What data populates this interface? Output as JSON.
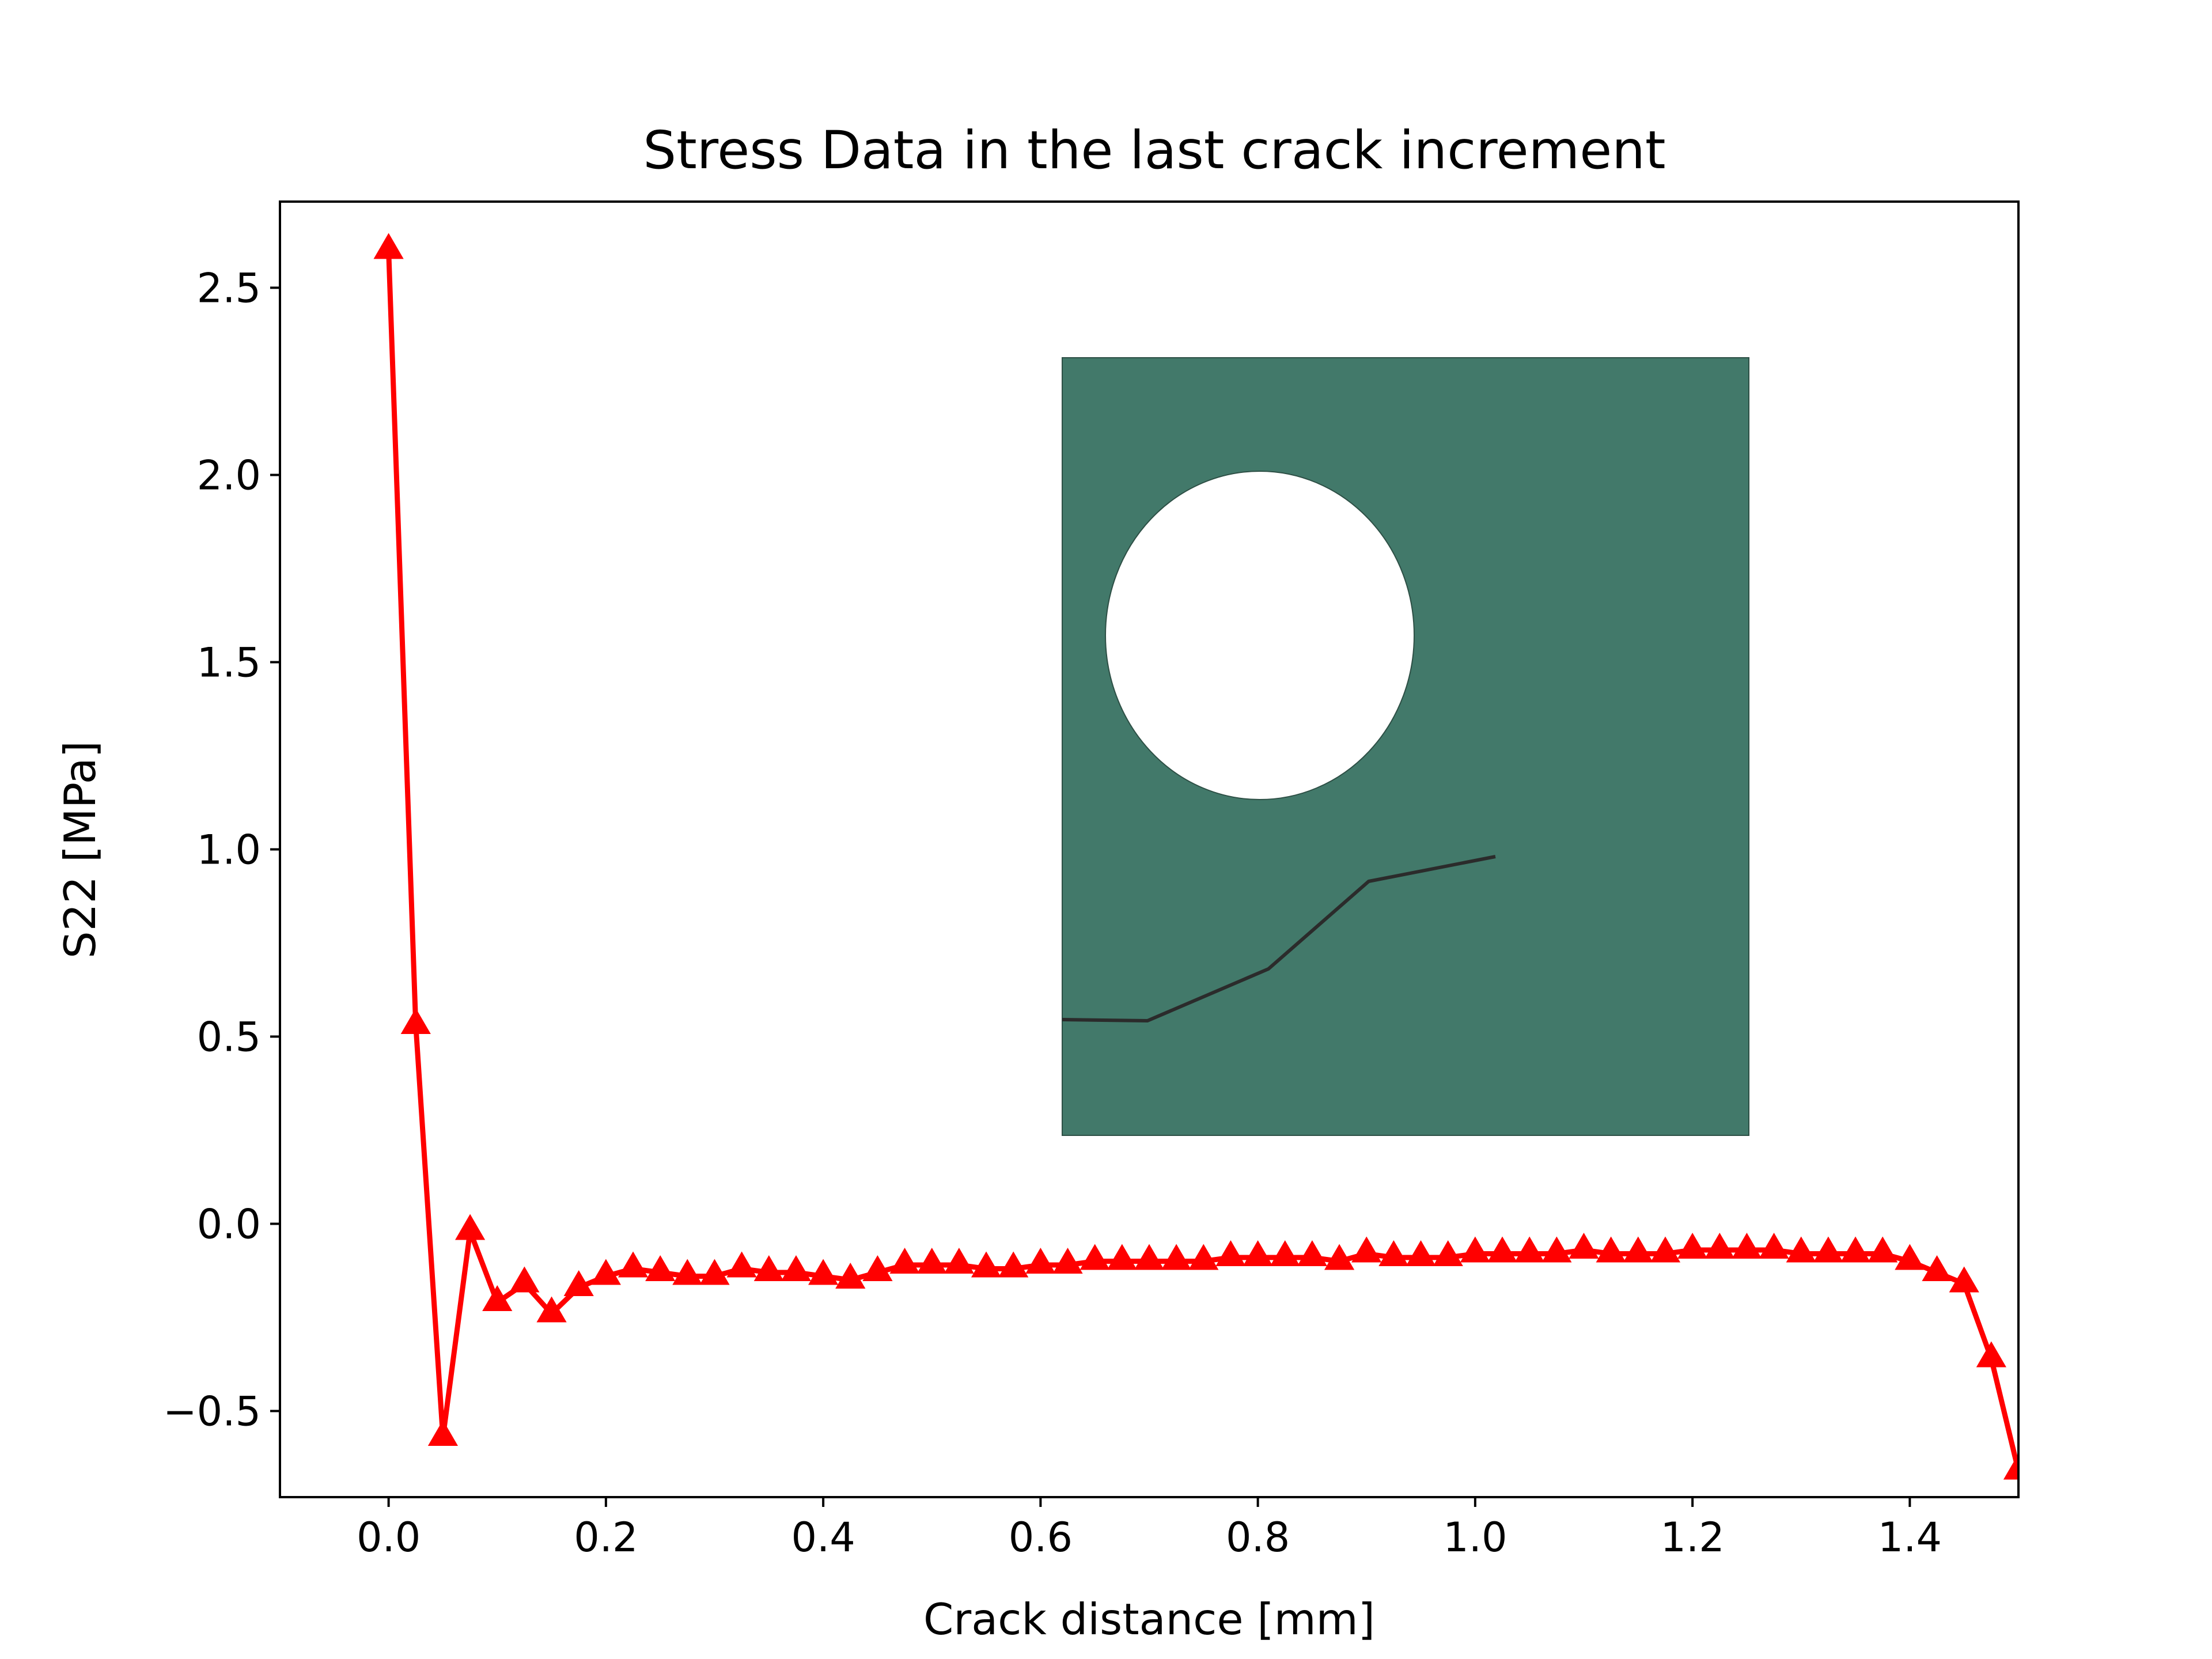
{
  "chart_data": {
    "type": "line",
    "title": "Stress Data in the last crack increment",
    "xlabel": "Crack distance [mm]",
    "ylabel": "S22 [MPa]",
    "xlim": [
      -0.1,
      1.5
    ],
    "ylim": [
      -0.73,
      2.73
    ],
    "xticks": [
      0.0,
      0.2,
      0.4,
      0.6,
      0.8,
      1.0,
      1.2,
      1.4
    ],
    "xtick_labels": [
      "0.0",
      "0.2",
      "0.4",
      "0.6",
      "0.8",
      "1.0",
      "1.2",
      "1.4"
    ],
    "yticks": [
      -0.5,
      0.0,
      0.5,
      1.0,
      1.5,
      2.0,
      2.5
    ],
    "ytick_labels": [
      "−0.5",
      "0.0",
      "0.5",
      "1.0",
      "1.5",
      "2.0",
      "2.5"
    ],
    "grid": false,
    "series": [
      {
        "color": "#ff0000",
        "marker": "triangle-up",
        "x": [
          0.0,
          0.025,
          0.05,
          0.075,
          0.1,
          0.125,
          0.15,
          0.175,
          0.2,
          0.225,
          0.25,
          0.275,
          0.3,
          0.325,
          0.35,
          0.375,
          0.4,
          0.425,
          0.45,
          0.475,
          0.5,
          0.525,
          0.55,
          0.575,
          0.6,
          0.625,
          0.65,
          0.675,
          0.7,
          0.725,
          0.75,
          0.775,
          0.8,
          0.825,
          0.85,
          0.875,
          0.9,
          0.925,
          0.95,
          0.975,
          1.0,
          1.025,
          1.05,
          1.075,
          1.1,
          1.125,
          1.15,
          1.175,
          1.2,
          1.225,
          1.25,
          1.275,
          1.3,
          1.325,
          1.35,
          1.375,
          1.4,
          1.425,
          1.45,
          1.475,
          1.5
        ],
        "y": [
          2.6,
          0.53,
          -0.57,
          -0.02,
          -0.21,
          -0.16,
          -0.24,
          -0.17,
          -0.14,
          -0.12,
          -0.13,
          -0.14,
          -0.14,
          -0.12,
          -0.13,
          -0.13,
          -0.14,
          -0.15,
          -0.13,
          -0.11,
          -0.11,
          -0.11,
          -0.12,
          -0.12,
          -0.11,
          -0.11,
          -0.1,
          -0.1,
          -0.1,
          -0.1,
          -0.1,
          -0.09,
          -0.09,
          -0.09,
          -0.09,
          -0.1,
          -0.08,
          -0.09,
          -0.09,
          -0.09,
          -0.08,
          -0.08,
          -0.08,
          -0.08,
          -0.07,
          -0.08,
          -0.08,
          -0.08,
          -0.07,
          -0.07,
          -0.07,
          -0.07,
          -0.08,
          -0.08,
          -0.08,
          -0.08,
          -0.1,
          -0.13,
          -0.16,
          -0.36,
          -0.66
        ]
      }
    ],
    "inset": {
      "plate_color": "#42796a",
      "hole_color": "#ffffff",
      "crack_color": "#2b2b2b"
    }
  }
}
